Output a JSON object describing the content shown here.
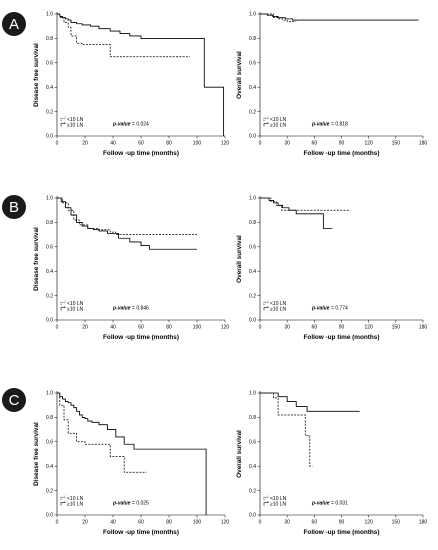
{
  "panels": [
    {
      "letter": "A"
    },
    {
      "letter": "B"
    },
    {
      "letter": "C"
    }
  ],
  "chart_data": [
    {
      "type": "line",
      "panel": "A",
      "xlabel": "Follow -up time (months)",
      "ylabel": "Disease free survival",
      "xlim": [
        0,
        120
      ],
      "ylim": [
        0,
        1.0
      ],
      "xticks": [
        "0",
        "20",
        "40",
        "60",
        "80",
        "100",
        "120"
      ],
      "yticks": [
        "0.0",
        "0.2",
        "0.4",
        "0.6",
        "0.8",
        "1.0"
      ],
      "legend": {
        "placement": "bottom-left",
        "entries": [
          "<10 LN",
          "≥10 LN"
        ]
      },
      "pvalue": {
        "label": "p-value",
        "value": "= 0.024"
      },
      "series": [
        {
          "legend_index": 0,
          "style": "dashed",
          "x": [
            0,
            2,
            5,
            8,
            10,
            14,
            18,
            32,
            38,
            40,
            95
          ],
          "y": [
            1.0,
            0.97,
            0.93,
            0.89,
            0.82,
            0.76,
            0.75,
            0.75,
            0.65,
            0.65,
            0.65
          ]
        },
        {
          "legend_index": 1,
          "style": "solid",
          "x": [
            0,
            2,
            4,
            6,
            8,
            10,
            14,
            18,
            24,
            30,
            38,
            45,
            52,
            60,
            105,
            105.2,
            118,
            119
          ],
          "y": [
            1.0,
            0.98,
            0.97,
            0.96,
            0.95,
            0.93,
            0.92,
            0.91,
            0.9,
            0.88,
            0.86,
            0.84,
            0.82,
            0.8,
            0.8,
            0.4,
            0.4,
            0.0
          ]
        }
      ]
    },
    {
      "type": "line",
      "panel": "A",
      "xlabel": "Follow -up time (months)",
      "ylabel": "Overall survival",
      "xlim": [
        0,
        180
      ],
      "ylim": [
        0,
        1.0
      ],
      "xticks": [
        "0",
        "30",
        "60",
        "90",
        "120",
        "150",
        "180"
      ],
      "yticks": [
        "0.0",
        "0.2",
        "0.4",
        "0.6",
        "0.8",
        "1.0"
      ],
      "legend": {
        "placement": "bottom-left",
        "entries": [
          "<10 LN",
          "≥10 LN"
        ]
      },
      "pvalue": {
        "label": "p-value",
        "value": "= 0.818"
      },
      "series": [
        {
          "legend_index": 0,
          "style": "dashed",
          "x": [
            0,
            15,
            20,
            25,
            30,
            40
          ],
          "y": [
            1.0,
            0.97,
            0.96,
            0.95,
            0.94,
            0.94
          ]
        },
        {
          "legend_index": 1,
          "style": "solid",
          "x": [
            0,
            8,
            14,
            20,
            28,
            36,
            175
          ],
          "y": [
            1.0,
            0.99,
            0.98,
            0.97,
            0.96,
            0.95,
            0.95
          ]
        }
      ]
    },
    {
      "type": "line",
      "panel": "B",
      "xlabel": "Follow -up time (months)",
      "ylabel": "Disease free survival",
      "xlim": [
        0,
        120
      ],
      "ylim": [
        0,
        1.0
      ],
      "xticks": [
        "0",
        "20",
        "40",
        "60",
        "80",
        "100",
        "120"
      ],
      "yticks": [
        "0.0",
        "0.2",
        "0.4",
        "0.6",
        "0.8",
        "1.0"
      ],
      "legend": {
        "placement": "bottom-left",
        "entries": [
          "<10 LN",
          "≥10 LN"
        ]
      },
      "pvalue": {
        "label": "p-value",
        "value": "= 0.846"
      },
      "series": [
        {
          "legend_index": 0,
          "style": "dashed",
          "x": [
            0,
            4,
            8,
            12,
            16,
            22,
            30,
            38,
            42,
            50,
            100
          ],
          "y": [
            1.0,
            0.96,
            0.9,
            0.82,
            0.78,
            0.75,
            0.74,
            0.72,
            0.7,
            0.7,
            0.7
          ]
        },
        {
          "legend_index": 1,
          "style": "solid",
          "x": [
            0,
            3,
            6,
            10,
            14,
            18,
            22,
            26,
            30,
            36,
            44,
            52,
            60,
            66,
            100
          ],
          "y": [
            1.0,
            0.97,
            0.92,
            0.86,
            0.8,
            0.77,
            0.75,
            0.74,
            0.73,
            0.71,
            0.67,
            0.64,
            0.61,
            0.58,
            0.58
          ]
        }
      ]
    },
    {
      "type": "line",
      "panel": "B",
      "xlabel": "Follow -up time (months)",
      "ylabel": "Overall survival",
      "xlim": [
        0,
        180
      ],
      "ylim": [
        0,
        1.0
      ],
      "xticks": [
        "0",
        "30",
        "60",
        "90",
        "120",
        "150",
        "180"
      ],
      "yticks": [
        "0.0",
        "0.2",
        "0.4",
        "0.6",
        "0.8",
        "1.0"
      ],
      "legend": {
        "placement": "bottom-left",
        "entries": [
          "<10 LN",
          "≥10 LN"
        ]
      },
      "pvalue": {
        "label": "p-value",
        "value": "= 0.774"
      },
      "series": [
        {
          "legend_index": 0,
          "style": "dashed",
          "x": [
            0,
            12,
            18,
            24,
            100
          ],
          "y": [
            1.0,
            0.97,
            0.94,
            0.9,
            0.9
          ]
        },
        {
          "legend_index": 1,
          "style": "solid",
          "x": [
            0,
            10,
            15,
            20,
            25,
            32,
            40,
            65,
            70,
            80
          ],
          "y": [
            1.0,
            0.98,
            0.96,
            0.94,
            0.92,
            0.9,
            0.87,
            0.87,
            0.75,
            0.75
          ]
        }
      ]
    },
    {
      "type": "line",
      "panel": "C",
      "xlabel": "Follow -up time (months)",
      "ylabel": "Disease free survival",
      "xlim": [
        0,
        120
      ],
      "ylim": [
        0,
        1.0
      ],
      "xticks": [
        "0",
        "20",
        "40",
        "60",
        "80",
        "100",
        "120"
      ],
      "yticks": [
        "0.0",
        "0.2",
        "0.4",
        "0.6",
        "0.8",
        "1.0"
      ],
      "legend": {
        "placement": "bottom-left",
        "entries": [
          "<10 LN",
          "≥10 LN"
        ]
      },
      "pvalue": {
        "label": "p-value",
        "value": "= 0.025"
      },
      "series": [
        {
          "legend_index": 0,
          "style": "dashed",
          "x": [
            0,
            2,
            5,
            8,
            14,
            20,
            32,
            38,
            48,
            64
          ],
          "y": [
            1.0,
            0.9,
            0.78,
            0.67,
            0.6,
            0.58,
            0.58,
            0.48,
            0.35,
            0.35
          ]
        },
        {
          "legend_index": 1,
          "style": "solid",
          "x": [
            0,
            2,
            4,
            6,
            8,
            10,
            12,
            14,
            16,
            18,
            20,
            22,
            25,
            30,
            36,
            42,
            48,
            55,
            106,
            106.5
          ],
          "y": [
            1.0,
            0.97,
            0.95,
            0.93,
            0.92,
            0.9,
            0.88,
            0.85,
            0.82,
            0.8,
            0.79,
            0.77,
            0.76,
            0.74,
            0.7,
            0.64,
            0.58,
            0.54,
            0.54,
            0.0
          ]
        }
      ]
    },
    {
      "type": "line",
      "panel": "C",
      "xlabel": "Follow -up time (months)",
      "ylabel": "Overall survival",
      "xlim": [
        0,
        180
      ],
      "ylim": [
        0,
        1.0
      ],
      "xticks": [
        "0",
        "30",
        "60",
        "90",
        "120",
        "150",
        "180"
      ],
      "yticks": [
        "0.0",
        "0.2",
        "0.4",
        "0.6",
        "0.8",
        "1.0"
      ],
      "legend": {
        "placement": "bottom-left",
        "entries": [
          "<10 LN",
          "≥10 LN"
        ]
      },
      "pvalue": {
        "label": "p-value",
        "value": "= 0.031"
      },
      "series": [
        {
          "legend_index": 0,
          "style": "dashed",
          "x": [
            0,
            15,
            20,
            48,
            50,
            55,
            58
          ],
          "y": [
            1.0,
            0.96,
            0.82,
            0.82,
            0.65,
            0.4,
            0.4
          ]
        },
        {
          "legend_index": 1,
          "style": "solid",
          "x": [
            0,
            10,
            20,
            30,
            40,
            52,
            110
          ],
          "y": [
            1.0,
            1.0,
            0.97,
            0.93,
            0.89,
            0.85,
            0.85
          ]
        }
      ]
    }
  ]
}
